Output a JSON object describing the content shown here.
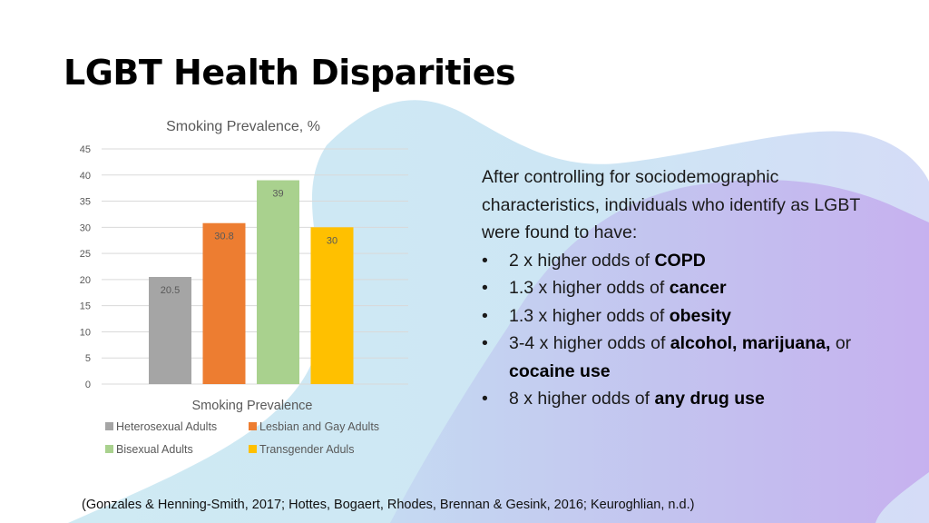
{
  "slide": {
    "title": "LGBT Health Disparities",
    "intro": "After controlling for sociodemographic characteristics, individuals who identify as LGBT were found to have:",
    "bullets": [
      {
        "prefix": "2 x higher odds of ",
        "bold": "COPD",
        "middle": "",
        "bold2": "",
        "bold3": ""
      },
      {
        "prefix": "1.3 x higher odds of ",
        "bold": "cancer",
        "middle": "",
        "bold2": "",
        "bold3": ""
      },
      {
        "prefix": "1.3 x higher odds of ",
        "bold": "obesity",
        "middle": "",
        "bold2": "",
        "bold3": ""
      },
      {
        "prefix": "3-4 x higher odds of ",
        "bold": "alcohol, marijuana,",
        "middle": " or ",
        "bold2": "cocaine use",
        "bold3": ""
      },
      {
        "prefix": "8 x higher odds of ",
        "bold": "any drug use",
        "middle": "",
        "bold2": "",
        "bold3": ""
      }
    ],
    "bullet_glyph": "•",
    "citation": "(Gonzales & Henning-Smith, 2017; Hottes, Bogaert, Rhodes, Brennan & Gesink, 2016; Keuroghlian, n.d.)"
  },
  "colors": {
    "bg_blue": "#cde9f2",
    "bg_purple": "#c7b4f0",
    "bg_lavender": "#d4dcf7"
  },
  "chart_data": {
    "type": "bar",
    "title": "Smoking Prevalence, %",
    "xlabel": "Smoking Prevalence",
    "ylabel": "",
    "categories": [
      "Smoking Prevalence"
    ],
    "series": [
      {
        "name": "Heterosexual Adults",
        "values": [
          20.5
        ],
        "color": "#a5a5a5",
        "label": "20.5"
      },
      {
        "name": "Lesbian and Gay Adults",
        "values": [
          30.8
        ],
        "color": "#ed7d31",
        "label": "30.8"
      },
      {
        "name": "Bisexual Adults",
        "values": [
          39
        ],
        "color": "#a9d18e",
        "label": "39"
      },
      {
        "name": "Transgender Aduls",
        "values": [
          30
        ],
        "color": "#ffc000",
        "label": "30"
      }
    ],
    "ylim": [
      0,
      45
    ],
    "yticks": [
      0,
      5,
      10,
      15,
      20,
      25,
      30,
      35,
      40,
      45
    ],
    "grid": true,
    "legend": "bottom"
  }
}
